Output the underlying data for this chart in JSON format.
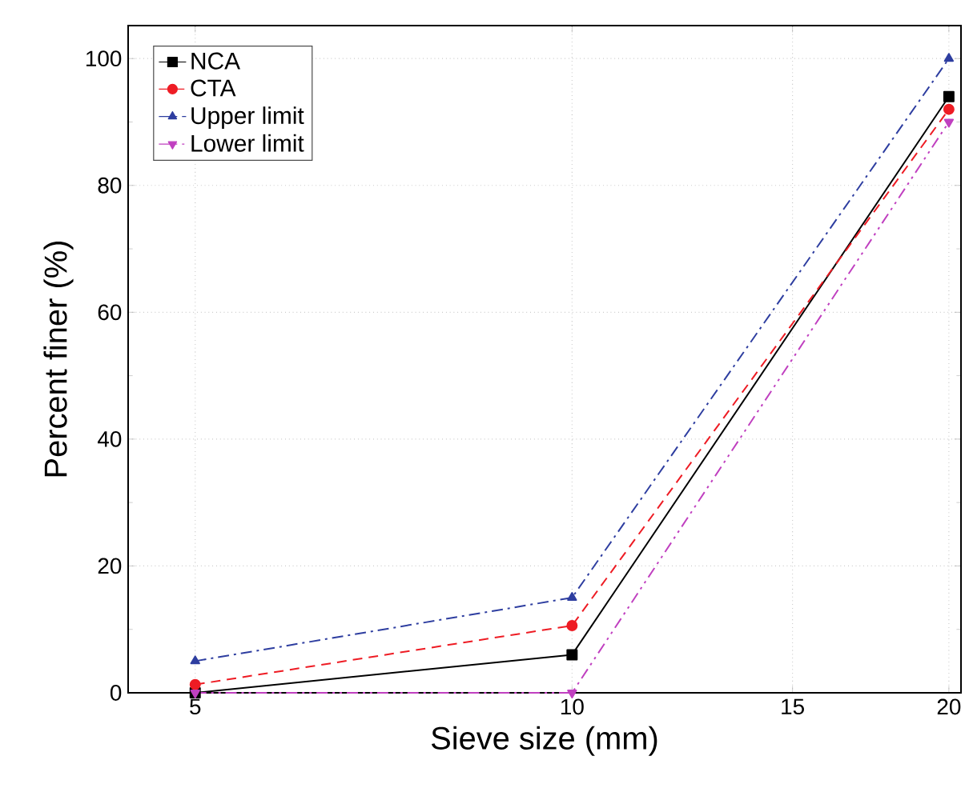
{
  "chart_data": {
    "type": "line",
    "xlabel": "Sieve size (mm)",
    "ylabel": "Percent finer (%)",
    "log": "x",
    "x": [
      5,
      10,
      20
    ],
    "series": [
      {
        "name": "NCA",
        "color": "#000000",
        "values": [
          0,
          6,
          94
        ],
        "marker": "square",
        "line_style": "solid"
      },
      {
        "name": "CTA",
        "color": "#ee1c24",
        "values": [
          1.3,
          10.6,
          92
        ],
        "marker": "circle",
        "line_style": "dashed"
      },
      {
        "name": "Upper limit",
        "color": "#2e3ea0",
        "values": [
          5,
          15,
          100
        ],
        "marker": "triangle",
        "line_style": "dashdot"
      },
      {
        "name": "Lower limit",
        "color": "#c040c0",
        "values": [
          0,
          0,
          90
        ],
        "marker": "triangle_down",
        "line_style": "dashdotdot"
      }
    ],
    "xlim": [
      4.42,
      20.45
    ],
    "ylim": [
      0,
      105.2
    ],
    "xticks": [
      5,
      10,
      15,
      20
    ],
    "yticks": [
      0,
      20,
      40,
      60,
      80,
      100
    ],
    "grid": true,
    "legend": "top left"
  }
}
